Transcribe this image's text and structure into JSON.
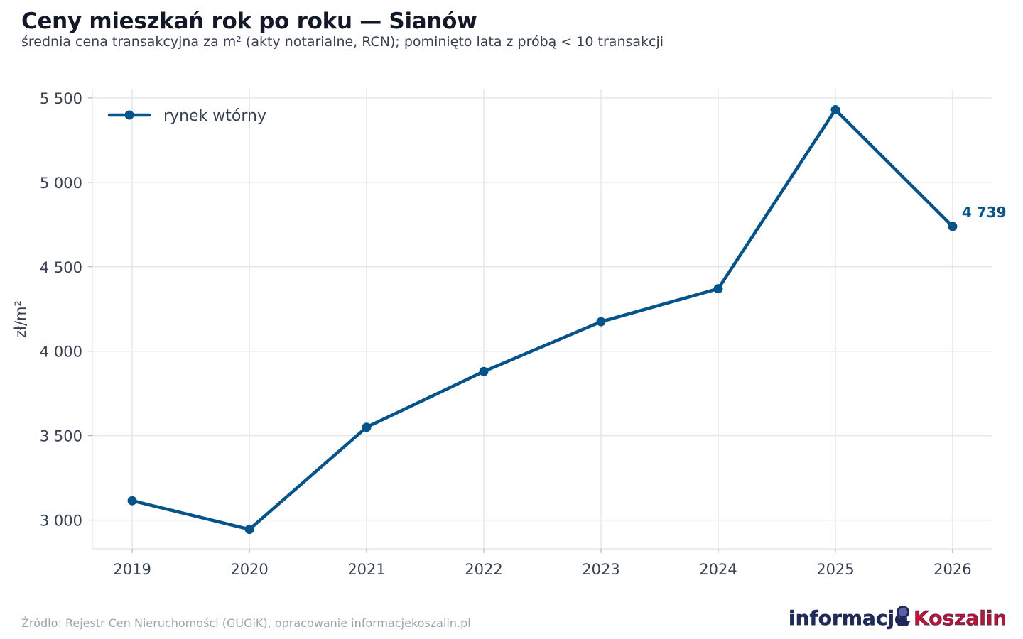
{
  "header": {
    "title": "Ceny mieszkań rok po roku — Sianów",
    "subtitle": "średnia cena transakcyjna za m² (akty notarialne, RCN); pominięto lata z próbą < 10 transakcji"
  },
  "footer": {
    "source": "Źródło: Rejestr Cen Nieruchomości (GUGiK), opracowanie informacjekoszalin.pl"
  },
  "logo": {
    "part1": "informacje",
    "part2": "Koszalin"
  },
  "colors": {
    "series": "#03548a",
    "grid": "#e5e7eb",
    "text": "#374151",
    "logo_dark": "#1f2a5a",
    "logo_red": "#c8102e"
  },
  "chart_data": {
    "type": "line",
    "title": "Ceny mieszkań rok po roku — Sianów",
    "subtitle": "średnia cena transakcyjna za m² (akty notarialne, RCN); pominięto lata z próbą < 10 transakcji",
    "xlabel": "",
    "ylabel": "zł/m²",
    "x": [
      2019,
      2020,
      2021,
      2022,
      2023,
      2024,
      2025,
      2026
    ],
    "xlim": [
      2018.66,
      2026.34
    ],
    "ylim": [
      2830,
      5550
    ],
    "yticks": [
      3000,
      3500,
      4000,
      4500,
      5000,
      5500
    ],
    "ytick_labels": [
      "3 000",
      "3 500",
      "4 000",
      "4 500",
      "5 000",
      "5 500"
    ],
    "grid": true,
    "legend_position": "top-left",
    "series": [
      {
        "name": "rynek wtórny",
        "color": "#03548a",
        "values": [
          3115,
          2945,
          3550,
          3880,
          4175,
          4370,
          5430,
          4739
        ]
      }
    ],
    "annotations": [
      {
        "x": 2026,
        "y": 4739,
        "text": "4 739"
      }
    ]
  }
}
